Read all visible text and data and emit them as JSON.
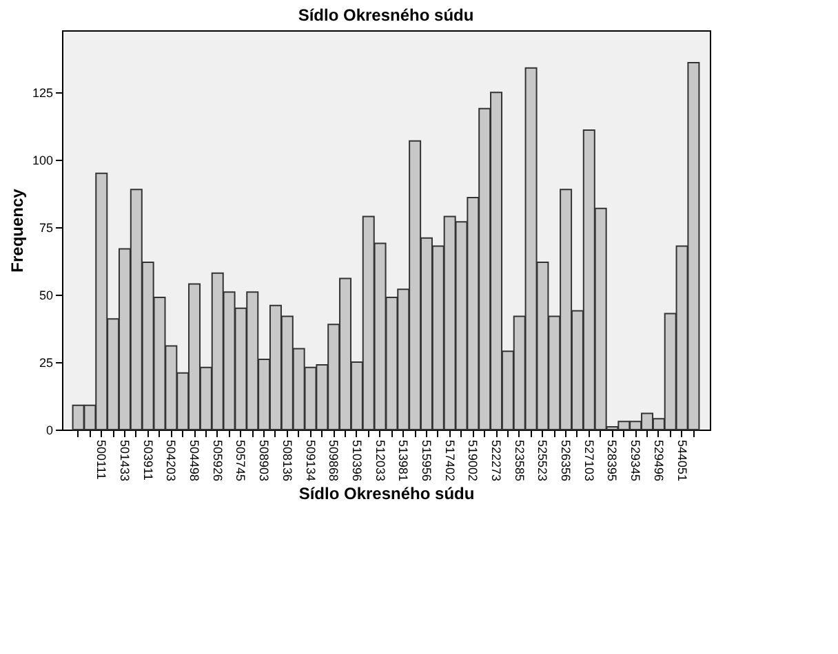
{
  "chart_data": {
    "type": "bar",
    "title": "Sídlo Okresného súdu",
    "xlabel": "Sídlo Okresného súdu",
    "ylabel": "Frequency",
    "categories": [
      null,
      null,
      "500111",
      null,
      "501433",
      null,
      "503911",
      null,
      "504203",
      null,
      "504498",
      null,
      "505926",
      null,
      "505745",
      null,
      "508903",
      null,
      "508136",
      null,
      "509134",
      null,
      "509868",
      null,
      "510396",
      null,
      "512033",
      null,
      "513981",
      null,
      "515956",
      null,
      "517402",
      null,
      "519002",
      null,
      "522273",
      null,
      "523585",
      null,
      "525523",
      null,
      "526356",
      null,
      "527103",
      null,
      "528395",
      null,
      "529345",
      null,
      "529496",
      null,
      "544051",
      null
    ],
    "values": [
      9,
      9,
      95,
      41,
      67,
      89,
      62,
      49,
      31,
      21,
      54,
      23,
      58,
      51,
      45,
      51,
      26,
      46,
      42,
      30,
      23,
      24,
      39,
      56,
      25,
      79,
      69,
      49,
      52,
      107,
      71,
      68,
      79,
      77,
      86,
      119,
      125,
      29,
      42,
      134,
      62,
      42,
      89,
      44,
      111,
      82,
      1,
      3,
      3,
      6,
      4,
      43,
      68,
      136
    ],
    "color": "#c8c8c8",
    "ylim": [
      0,
      148
    ],
    "yticks": [
      0,
      25,
      50,
      75,
      100,
      125
    ],
    "grid": false
  }
}
